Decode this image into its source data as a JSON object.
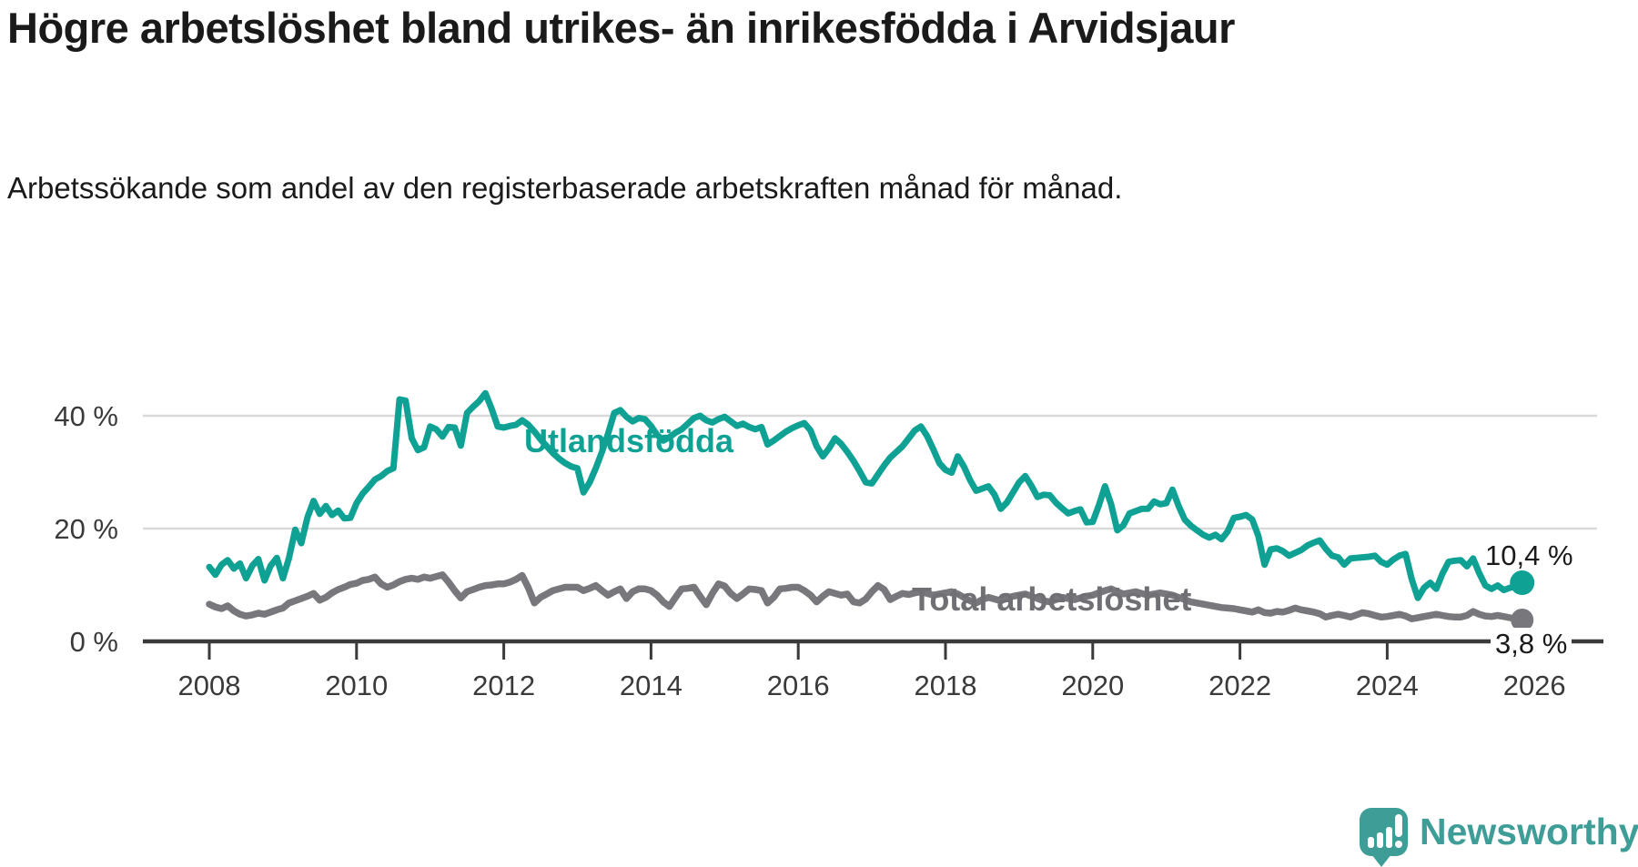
{
  "header": {
    "title": "Högre arbetslöshet bland utrikes- än inrikesfödda i Arvidsjaur",
    "subtitle": "Arbetssökande som andel av den registerbaserade arbetskraften månad för månad."
  },
  "chart_data": {
    "type": "line",
    "title": "Högre arbetslöshet bland utrikes- än inrikesfödda i Arvidsjaur",
    "subtitle": "Arbetssökande som andel av den registerbaserade arbetskraften månad för månad.",
    "grid": "horizontal-only",
    "legend_position": "inline-labels-on-lines",
    "x_axis": {
      "tick_years": [
        2008,
        2010,
        2012,
        2014,
        2016,
        2018,
        2020,
        2022,
        2024,
        2026
      ],
      "range_years": [
        2007.1,
        2026.9
      ]
    },
    "y_axis": {
      "unit": "%",
      "ticks": [
        {
          "value": 0,
          "label": "0 %"
        },
        {
          "value": 20,
          "label": "20 %"
        },
        {
          "value": 40,
          "label": "40 %"
        }
      ],
      "range": [
        0,
        48
      ]
    },
    "series": [
      {
        "name": "Utlandsfödda",
        "color": "#0FA294",
        "start_year": 2008.0,
        "points_per_year": 12,
        "end_label": "10,4 %",
        "last_value": 10.4,
        "values": [
          13.2,
          11.8,
          13.6,
          14.4,
          12.9,
          13.8,
          11.2,
          13.4,
          14.6,
          10.8,
          13.4,
          14.8,
          11.2,
          14.8,
          19.8,
          17.4,
          22.0,
          24.9,
          22.6,
          24.0,
          22.4,
          23.2,
          21.8,
          21.9,
          24.5,
          26.2,
          27.4,
          28.7,
          29.3,
          30.2,
          30.7,
          42.9,
          42.7,
          36.0,
          33.9,
          34.4,
          38.1,
          37.6,
          36.3,
          38.0,
          37.9,
          34.7,
          40.5,
          41.6,
          42.6,
          44.0,
          41.3,
          38.1,
          37.9,
          38.2,
          38.4,
          39.2,
          38.4,
          37.2,
          35.8,
          34.6,
          33.4,
          32.4,
          31.6,
          31.0,
          30.7,
          26.4,
          28.2,
          30.7,
          33.6,
          36.8,
          40.5,
          41.0,
          39.8,
          39.0,
          39.6,
          39.4,
          38.2,
          36.6,
          35.6,
          36.2,
          37.0,
          37.6,
          38.6,
          39.6,
          40.0,
          39.2,
          38.8,
          39.4,
          39.8,
          39.0,
          38.2,
          38.6,
          38.0,
          37.6,
          38.0,
          34.9,
          35.6,
          36.4,
          37.2,
          37.8,
          38.3,
          38.7,
          37.4,
          34.6,
          32.8,
          34.2,
          36.0,
          35.0,
          33.6,
          32.0,
          30.2,
          28.2,
          28.0,
          29.6,
          31.2,
          32.6,
          33.6,
          34.6,
          36.0,
          37.4,
          38.1,
          36.4,
          34.1,
          31.6,
          30.4,
          29.9,
          32.8,
          31.0,
          28.6,
          26.7,
          27.1,
          27.5,
          26.0,
          23.5,
          24.6,
          26.4,
          28.2,
          29.3,
          27.6,
          25.6,
          26.0,
          25.9,
          24.6,
          23.6,
          22.7,
          23.1,
          23.4,
          21.1,
          21.2,
          24.1,
          27.5,
          24.3,
          19.7,
          20.6,
          22.7,
          23.1,
          23.5,
          23.5,
          24.8,
          24.3,
          24.5,
          26.9,
          24.0,
          21.6,
          20.5,
          19.7,
          18.9,
          18.4,
          18.9,
          18.1,
          19.5,
          21.9,
          22.1,
          22.4,
          21.6,
          18.7,
          13.6,
          16.3,
          16.5,
          16.0,
          15.2,
          15.7,
          16.2,
          17.0,
          17.5,
          17.9,
          16.4,
          15.2,
          14.9,
          13.6,
          14.7,
          14.8,
          14.9,
          15.0,
          15.2,
          14.1,
          13.6,
          14.5,
          15.2,
          15.5,
          11.0,
          7.7,
          9.5,
          10.4,
          9.3,
          12.0,
          14.1,
          14.3,
          14.4,
          13.3,
          14.7,
          12.1,
          9.9,
          9.3,
          9.9,
          9.1,
          9.5,
          9.8,
          10.4
        ]
      },
      {
        "name": "Total arbetslöshet",
        "color": "#77777C",
        "start_year": 2008.0,
        "points_per_year": 12,
        "end_label": "3,8 %",
        "last_value": 3.8,
        "values": [
          6.6,
          6.1,
          5.8,
          6.3,
          5.4,
          4.8,
          4.5,
          4.7,
          5.0,
          4.8,
          5.2,
          5.6,
          5.9,
          6.8,
          7.2,
          7.6,
          8.0,
          8.5,
          7.3,
          7.8,
          8.6,
          9.2,
          9.6,
          10.1,
          10.3,
          10.8,
          11.0,
          11.4,
          10.2,
          9.6,
          10.0,
          10.6,
          11.0,
          11.2,
          11.0,
          11.4,
          11.2,
          11.5,
          11.8,
          10.5,
          9.0,
          7.7,
          8.8,
          9.2,
          9.6,
          9.9,
          10.0,
          10.2,
          10.2,
          10.5,
          11.0,
          11.7,
          9.5,
          6.8,
          7.8,
          8.4,
          9.0,
          9.3,
          9.6,
          9.6,
          9.6,
          9.0,
          9.4,
          9.9,
          9.0,
          8.2,
          8.8,
          9.3,
          7.6,
          8.8,
          9.3,
          9.3,
          9.0,
          8.2,
          7.0,
          6.2,
          7.8,
          9.3,
          9.4,
          9.6,
          8.0,
          6.5,
          8.5,
          10.2,
          9.8,
          8.5,
          7.6,
          8.4,
          9.3,
          9.2,
          9.0,
          6.8,
          7.8,
          9.3,
          9.4,
          9.6,
          9.6,
          9.0,
          8.2,
          7.0,
          8.0,
          8.8,
          8.5,
          8.2,
          8.4,
          7.0,
          6.8,
          7.5,
          8.8,
          9.9,
          9.2,
          7.4,
          8.0,
          8.5,
          8.3,
          8.6,
          8.8,
          8.5,
          8.2,
          8.4,
          8.6,
          8.8,
          8.4,
          7.8,
          7.2,
          6.8,
          7.4,
          7.8,
          7.5,
          7.2,
          7.6,
          8.0,
          8.2,
          8.4,
          8.0,
          7.6,
          7.2,
          7.0,
          7.4,
          7.8,
          7.6,
          7.4,
          7.7,
          8.0,
          8.2,
          8.6,
          9.0,
          9.3,
          8.8,
          8.4,
          8.6,
          8.8,
          8.5,
          8.2,
          8.4,
          8.6,
          8.4,
          8.2,
          7.8,
          7.4,
          7.0,
          6.8,
          6.6,
          6.4,
          6.2,
          6.0,
          5.9,
          5.8,
          5.6,
          5.4,
          5.2,
          5.6,
          5.1,
          5.0,
          5.3,
          5.2,
          5.5,
          5.9,
          5.6,
          5.4,
          5.2,
          4.9,
          4.3,
          4.6,
          4.8,
          4.6,
          4.3,
          4.7,
          5.1,
          4.9,
          4.6,
          4.3,
          4.4,
          4.6,
          4.8,
          4.5,
          4.0,
          4.2,
          4.4,
          4.6,
          4.8,
          4.6,
          4.4,
          4.3,
          4.3,
          4.6,
          5.3,
          4.8,
          4.5,
          4.4,
          4.6,
          4.4,
          4.2,
          4.0,
          3.8
        ]
      }
    ],
    "colors": {
      "axis": "#3A3A3A",
      "gridline": "#D9D9D9",
      "tick_label": "#3A3A3A",
      "annotation_text": "#1A1A1A"
    }
  },
  "branding": {
    "logo_text": "Newsworthy",
    "logo_color": "#3E9E97",
    "logo_icon": "bar-chart-exclamation-speech-bubble"
  }
}
